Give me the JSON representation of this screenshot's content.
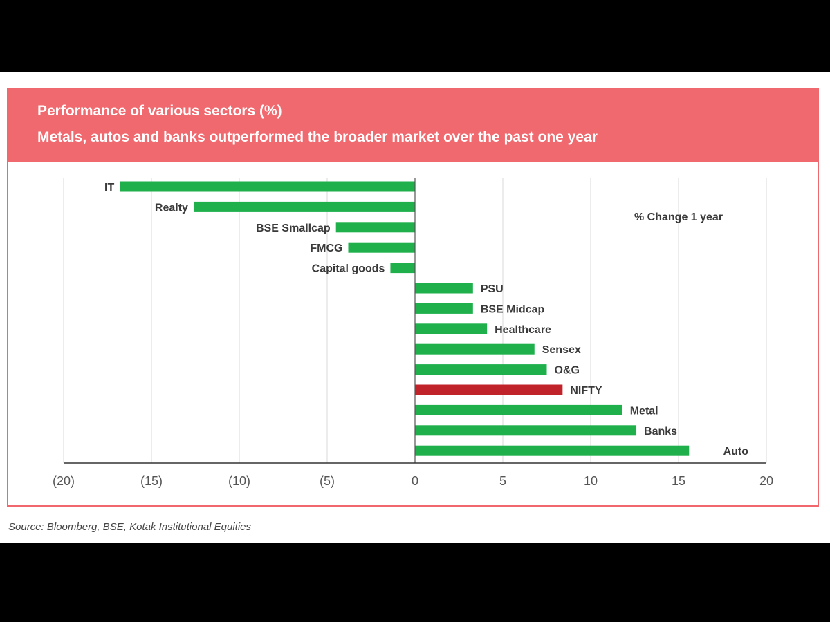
{
  "header": {
    "title": "Performance of various sectors (%)",
    "subtitle": "Metals, autos and banks outperformed the broader market over the past one year"
  },
  "source": "Source: Bloomberg, BSE, Kotak Institutional Equities",
  "colors": {
    "banner": "#f0696f",
    "positive": "#1fb04c",
    "highlight": "#c1232b",
    "grid": "#d9d9d9"
  },
  "chart_data": {
    "type": "bar",
    "orientation": "horizontal",
    "annotation": "% Change 1 year",
    "categories": [
      "IT",
      "Realty",
      "BSE Smallcap",
      "FMCG",
      "Capital goods",
      "PSU",
      "BSE Midcap",
      "Healthcare",
      "Sensex",
      "O&G",
      "NIFTY",
      "Metal",
      "Banks",
      "Auto"
    ],
    "values": [
      -16.8,
      -12.6,
      -4.5,
      -3.8,
      -1.4,
      3.3,
      3.3,
      4.1,
      6.8,
      7.5,
      8.4,
      11.8,
      12.6,
      15.6
    ],
    "highlight": [
      "NIFTY"
    ],
    "xlim": [
      -20,
      20
    ],
    "xticks": [
      -20,
      -15,
      -10,
      -5,
      0,
      5,
      10,
      15,
      20
    ],
    "xtick_labels": [
      "(20)",
      "(15)",
      "(10)",
      "(5)",
      "0",
      "5",
      "10",
      "15",
      "20"
    ],
    "grid": true,
    "legend": "none"
  }
}
